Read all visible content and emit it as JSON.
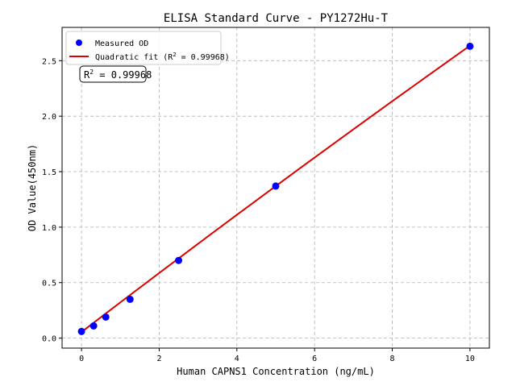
{
  "chart_data": {
    "type": "scatter",
    "title": "ELISA Standard Curve - PY1272Hu-T",
    "xlabel": "Human CAPNS1 Concentration (ng/mL)",
    "ylabel": "OD Value(450nm)",
    "xlim": [
      -0.5,
      10.5
    ],
    "ylim": [
      -0.09,
      2.8
    ],
    "xticks": [
      0,
      2,
      4,
      6,
      8,
      10
    ],
    "xtick_labels": [
      "0",
      "2",
      "4",
      "6",
      "8",
      "10"
    ],
    "yticks": [
      0,
      0.5,
      1.0,
      1.5,
      2.0,
      2.5
    ],
    "ytick_labels": [
      "0.0",
      "0.5",
      "1.0",
      "1.5",
      "2.0",
      "2.5"
    ],
    "grid": true,
    "legend_position": "top-left",
    "series": [
      {
        "name": "Measured OD",
        "kind": "scatter",
        "color": "#0000ff",
        "x": [
          0,
          0.3125,
          0.625,
          1.25,
          2.5,
          5,
          10
        ],
        "y": [
          0.06,
          0.11,
          0.19,
          0.35,
          0.7,
          1.37,
          2.63
        ]
      },
      {
        "name_prefix": "Quadratic fit (R",
        "name_suffix": " = 0.99968)",
        "kind": "line",
        "color": "#dd0000",
        "x": [
          0,
          1,
          2,
          3,
          4,
          5,
          6,
          7,
          8,
          9,
          10
        ],
        "y": [
          0.055,
          0.322,
          0.587,
          0.85,
          1.111,
          1.37,
          1.627,
          1.882,
          2.135,
          2.386,
          2.635
        ]
      }
    ],
    "annotation": {
      "prefix": "R",
      "sup": "2",
      "suffix": " = 0.99968"
    }
  }
}
